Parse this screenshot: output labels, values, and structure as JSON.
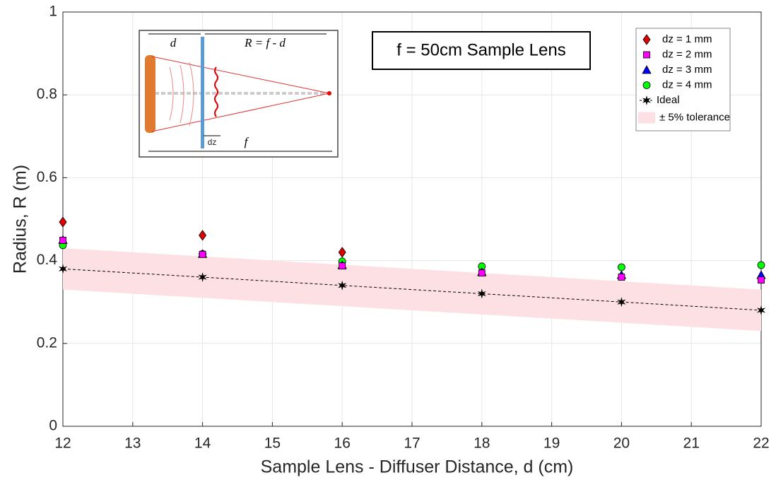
{
  "chart_data": {
    "type": "scatter",
    "xlabel": "Sample Lens - Diffuser Distance, d (cm)",
    "ylabel": "Radius, R (m)",
    "xlim": [
      12,
      22
    ],
    "xticks": [
      12,
      13,
      14,
      15,
      16,
      17,
      18,
      19,
      20,
      21,
      22
    ],
    "ylim": [
      0,
      1
    ],
    "yticks": [
      0,
      0.2,
      0.4,
      0.6,
      0.8,
      1
    ],
    "grid": true,
    "legend": "upper right",
    "annotation": "f = 50cm Sample Lens",
    "series": [
      {
        "name": "dz = 1 mm",
        "color": "#e00000",
        "marker": "diamond",
        "x": [
          12,
          14,
          16
        ],
        "values": [
          0.493,
          0.461,
          0.42
        ]
      },
      {
        "name": "dz = 2 mm",
        "color": "#ff00ff",
        "marker": "square",
        "x": [
          12,
          14,
          16,
          18,
          20,
          22
        ],
        "values": [
          0.449,
          0.415,
          0.387,
          0.37,
          0.36,
          0.353
        ]
      },
      {
        "name": "dz = 3 mm",
        "color": "#0000ff",
        "marker": "triangle",
        "x": [
          12,
          14,
          16,
          18,
          20,
          22
        ],
        "values": [
          0.45,
          0.416,
          0.389,
          0.372,
          0.365,
          0.365
        ]
      },
      {
        "name": "dz = 4 mm",
        "color": "#00ff00",
        "marker": "circle",
        "x": [
          12,
          14,
          16,
          18,
          20,
          22
        ],
        "values": [
          0.437,
          0.416,
          0.398,
          0.386,
          0.384,
          0.389
        ]
      },
      {
        "name": "Ideal",
        "color": "#000000",
        "marker": "star",
        "line": "dashed",
        "x": [
          12,
          14,
          16,
          18,
          20,
          22
        ],
        "values": [
          0.38,
          0.36,
          0.34,
          0.32,
          0.3,
          0.28
        ]
      }
    ],
    "band": {
      "name": "± 5% tolerance",
      "color": "#fde0e3",
      "x": [
        12,
        22
      ],
      "lower": [
        0.33,
        0.23
      ],
      "upper": [
        0.43,
        0.33
      ]
    },
    "inset": {
      "d": "d",
      "r_eq": "R = f - d",
      "dz": "dz",
      "f": "f"
    }
  }
}
